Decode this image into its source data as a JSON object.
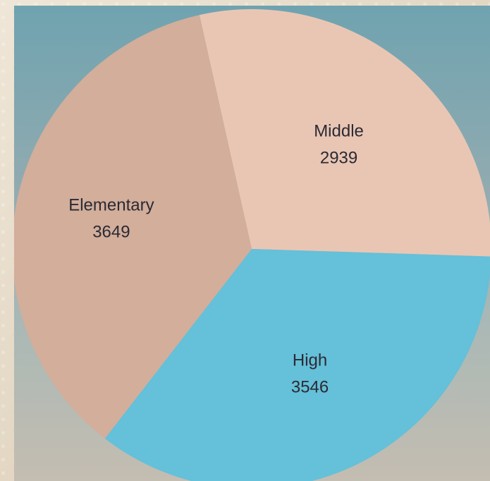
{
  "chart_data": {
    "type": "pie",
    "categories": [
      "Middle",
      "High",
      "Elementary"
    ],
    "values": [
      2939,
      3546,
      3649
    ],
    "colors": [
      "#e9c6b4",
      "#65c0d9",
      "#d2ae9b"
    ],
    "title": "",
    "legend": "none",
    "labels_inside": true
  }
}
